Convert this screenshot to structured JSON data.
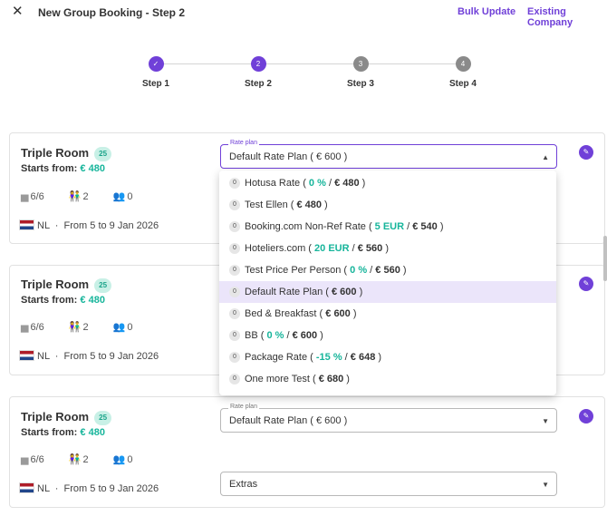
{
  "header": {
    "close_icon": "close-icon",
    "title": "New Group Booking - Step 2",
    "bulk_update": "Bulk Update",
    "existing_company": "Existing Company"
  },
  "steps": [
    {
      "label": "Step 1",
      "number": "✓",
      "state": "done"
    },
    {
      "label": "Step 2",
      "number": "2",
      "state": "active"
    },
    {
      "label": "Step 3",
      "number": "3",
      "state": "todo"
    },
    {
      "label": "Step 4",
      "number": "4",
      "state": "todo"
    }
  ],
  "rooms": [
    {
      "name": "Triple Room",
      "count": "25",
      "starts_label": "Starts from:",
      "starts_price": "€ 480",
      "occupancy": "6/6",
      "adults": "2",
      "children": "0",
      "country": "NL",
      "dates": "From 5 to 9 Jan 2026",
      "rate_label": "Rate plan",
      "rate_value": "Default Rate Plan ( € 600 )"
    },
    {
      "name": "Triple Room",
      "count": "25",
      "starts_label": "Starts from:",
      "starts_price": "€ 480",
      "occupancy": "6/6",
      "adults": "2",
      "children": "0",
      "country": "NL",
      "dates": "From 5 to 9 Jan 2026"
    },
    {
      "name": "Triple Room",
      "count": "25",
      "starts_label": "Starts from:",
      "starts_price": "€ 480",
      "occupancy": "6/6",
      "adults": "2",
      "children": "0",
      "country": "NL",
      "dates": "From 5 to 9 Jan 2026",
      "rate_label": "Rate plan",
      "rate_value": "Default Rate Plan ( € 600 )",
      "extras_value": "Extras"
    }
  ],
  "dropdown_options": [
    {
      "badge": "0",
      "name": "Hotusa Rate ( ",
      "discount": "0 %",
      "sep": " / ",
      "price": "€ 480",
      "end": " )"
    },
    {
      "badge": "0",
      "name": "Test Ellen ( ",
      "discount": "",
      "sep": "",
      "price": "€ 480",
      "end": " )"
    },
    {
      "badge": "0",
      "name": "Booking.com Non-Ref Rate ( ",
      "discount": "5 EUR",
      "sep": " / ",
      "price": "€ 540",
      "end": " )"
    },
    {
      "badge": "0",
      "name": "Hoteliers.com ( ",
      "discount": "20 EUR",
      "sep": " / ",
      "price": "€ 560",
      "end": " )"
    },
    {
      "badge": "0",
      "name": "Test Price Per Person ( ",
      "discount": "0 %",
      "sep": " / ",
      "price": "€ 560",
      "end": " )"
    },
    {
      "badge": "0",
      "name": "Default Rate Plan ( ",
      "discount": "",
      "sep": "",
      "price": "€ 600",
      "end": " )",
      "selected": true
    },
    {
      "badge": "0",
      "name": "Bed & Breakfast ( ",
      "discount": "",
      "sep": "",
      "price": "€ 600",
      "end": " )"
    },
    {
      "badge": "0",
      "name": "BB ( ",
      "discount": "0 %",
      "sep": " / ",
      "price": "€ 600",
      "end": " )"
    },
    {
      "badge": "0",
      "name": "Package Rate ( ",
      "discount": "-15 %",
      "sep": " / ",
      "price": "€ 648",
      "end": " )"
    },
    {
      "badge": "0",
      "name": "One more Test ( ",
      "discount": "",
      "sep": "",
      "price": "€ 680",
      "end": " )"
    }
  ],
  "colors": {
    "accent": "#7040d8",
    "teal": "#17b59b"
  }
}
